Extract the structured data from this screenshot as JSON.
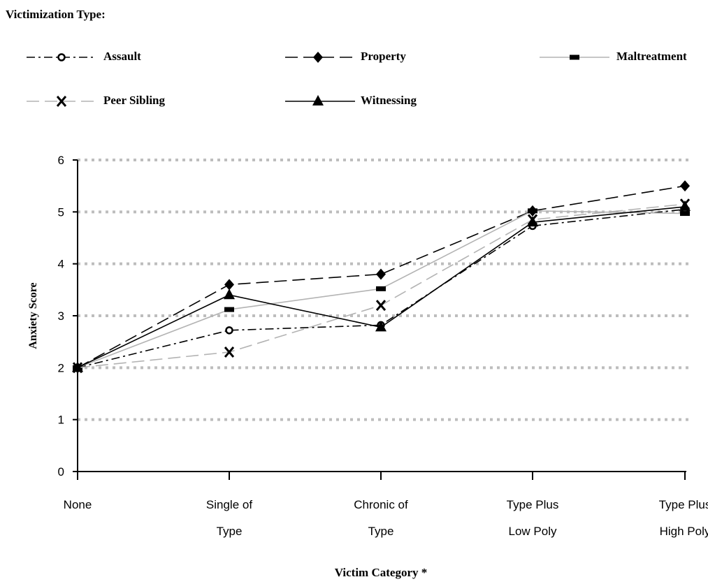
{
  "chart_data": {
    "type": "line",
    "title": "",
    "legend_title": "Victimization Type:",
    "legend_position": "top",
    "xlabel": "Victim Category *",
    "ylabel": "Anxiety Score",
    "ylim": [
      0,
      6
    ],
    "yticks": [
      "0",
      "1",
      "2",
      "3",
      "4",
      "5",
      "6"
    ],
    "grid": "horizontal dotted",
    "categories": [
      [
        "None"
      ],
      [
        "Single of",
        "Type"
      ],
      [
        "Chronic of",
        "Type"
      ],
      [
        "Type Plus",
        "Low Poly"
      ],
      [
        "Type Plus",
        "High Poly"
      ]
    ],
    "series": [
      {
        "name": "Assault",
        "marker": "circle-open",
        "line": "dash-dot",
        "color": "#000000",
        "values": [
          2.0,
          2.72,
          2.82,
          4.73,
          5.05
        ]
      },
      {
        "name": "Property",
        "marker": "diamond",
        "line": "long-dash",
        "color": "#000000",
        "values": [
          2.0,
          3.6,
          3.8,
          5.02,
          5.5
        ]
      },
      {
        "name": "Maltreatment",
        "marker": "dash",
        "line": "solid",
        "color": "#b3b3b3",
        "values": [
          2.0,
          3.12,
          3.52,
          5.02,
          4.97
        ]
      },
      {
        "name": "Peer Sibling",
        "marker": "x",
        "line": "long-dash",
        "color": "#b3b3b3",
        "values": [
          2.0,
          2.3,
          3.2,
          4.85,
          5.15
        ]
      },
      {
        "name": "Witnessing",
        "marker": "triangle",
        "line": "solid",
        "color": "#000000",
        "values": [
          2.0,
          3.4,
          2.78,
          4.8,
          5.1
        ]
      }
    ]
  }
}
